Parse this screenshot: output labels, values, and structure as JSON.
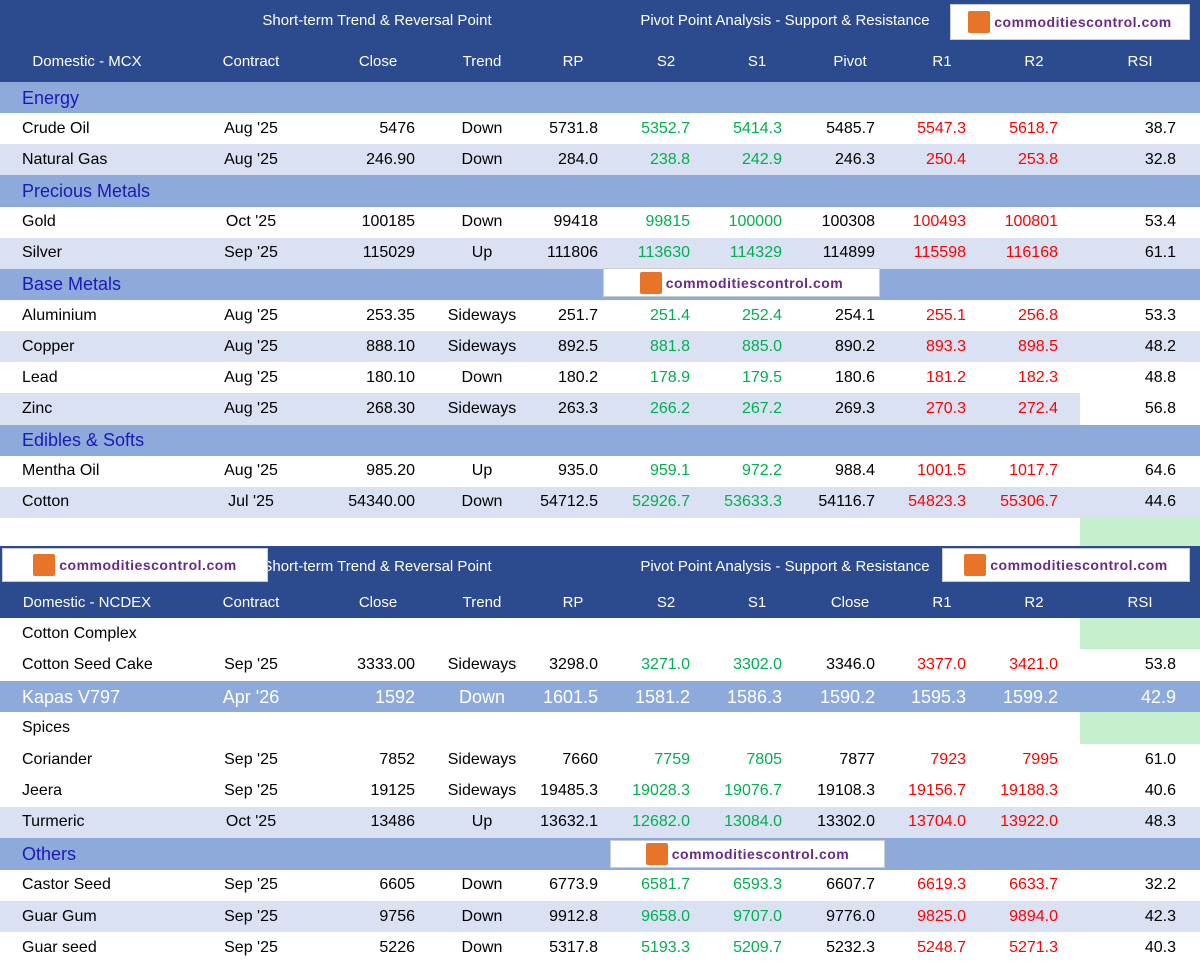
{
  "logo": "commoditiescontrol.com",
  "tables": [
    {
      "header": {
        "left_group": "Short-term Trend & Reversal Point",
        "right_group": "Pivot Point Analysis - Support & Resistance",
        "columns": [
          "Domestic - MCX",
          "Contract",
          "Close",
          "Trend",
          "RP",
          "S2",
          "S1",
          "Pivot",
          "R1",
          "R2",
          "RSI"
        ]
      },
      "sections": [
        {
          "title": "Energy",
          "rows": [
            [
              "Crude Oil",
              "Aug '25",
              "5476",
              "Down",
              "5731.8",
              "5352.7",
              "5414.3",
              "5485.7",
              "5547.3",
              "5618.7",
              "38.7"
            ],
            [
              "Natural Gas",
              "Aug '25",
              "246.90",
              "Down",
              "284.0",
              "238.8",
              "242.9",
              "246.3",
              "250.4",
              "253.8",
              "32.8"
            ]
          ]
        },
        {
          "title": "Precious Metals",
          "rows": [
            [
              "Gold",
              "Oct '25",
              "100185",
              "Down",
              "99418",
              "99815",
              "100000",
              "100308",
              "100493",
              "100801",
              "53.4"
            ],
            [
              "Silver",
              "Sep '25",
              "115029",
              "Up",
              "111806",
              "113630",
              "114329",
              "114899",
              "115598",
              "116168",
              "61.1"
            ]
          ]
        },
        {
          "title": "Base Metals",
          "rows": [
            [
              "Aluminium",
              "Aug '25",
              "253.35",
              "Sideways",
              "251.7",
              "251.4",
              "252.4",
              "254.1",
              "255.1",
              "256.8",
              "53.3"
            ],
            [
              "Copper",
              "Aug '25",
              "888.10",
              "Sideways",
              "892.5",
              "881.8",
              "885.0",
              "890.2",
              "893.3",
              "898.5",
              "48.2"
            ],
            [
              "Lead",
              "Aug '25",
              "180.10",
              "Down",
              "180.2",
              "178.9",
              "179.5",
              "180.6",
              "181.2",
              "182.3",
              "48.8"
            ],
            [
              "Zinc",
              "Aug '25",
              "268.30",
              "Sideways",
              "263.3",
              "266.2",
              "267.2",
              "269.3",
              "270.3",
              "272.4",
              "56.8"
            ]
          ]
        },
        {
          "title": "Edibles & Softs",
          "rows": [
            [
              "Mentha Oil",
              "Aug '25",
              "985.20",
              "Up",
              "935.0",
              "959.1",
              "972.2",
              "988.4",
              "1001.5",
              "1017.7",
              "64.6"
            ],
            [
              "Cotton",
              "Jul '25",
              "54340.00",
              "Down",
              "54712.5",
              "52926.7",
              "53633.3",
              "54116.7",
              "54823.3",
              "55306.7",
              "44.6"
            ]
          ]
        }
      ]
    },
    {
      "header": {
        "left_group": "Short-term Trend & Reversal Point",
        "right_group": "Pivot Point Analysis - Support & Resistance",
        "columns": [
          "Domestic - NCDEX",
          "Contract",
          "Close",
          "Trend",
          "RP",
          "S2",
          "S1",
          "Close",
          "R1",
          "R2",
          "RSI"
        ]
      },
      "sections": [
        {
          "title": "Cotton Complex",
          "rows": [
            [
              "Cotton Seed Cake",
              "Sep '25",
              "3333.00",
              "Sideways",
              "3298.0",
              "3271.0",
              "3302.0",
              "3346.0",
              "3377.0",
              "3421.0",
              "53.8"
            ],
            [
              "Kapas V797",
              "Apr '26",
              "1592",
              "Down",
              "1601.5",
              "1581.2",
              "1586.3",
              "1590.2",
              "1595.3",
              "1599.2",
              "42.9"
            ]
          ]
        },
        {
          "title": "Spices",
          "rows": [
            [
              "Coriander",
              "Sep '25",
              "7852",
              "Sideways",
              "7660",
              "7759",
              "7805",
              "7877",
              "7923",
              "7995",
              "61.0"
            ],
            [
              "Jeera",
              "Sep '25",
              "19125",
              "Sideways",
              "19485.3",
              "19028.3",
              "19076.7",
              "19108.3",
              "19156.7",
              "19188.3",
              "40.6"
            ],
            [
              "Turmeric",
              "Oct '25",
              "13486",
              "Up",
              "13632.1",
              "12682.0",
              "13084.0",
              "13302.0",
              "13704.0",
              "13922.0",
              "48.3"
            ]
          ]
        },
        {
          "title": "Others",
          "rows": [
            [
              "Castor Seed",
              "Sep '25",
              "6605",
              "Down",
              "6773.9",
              "6581.7",
              "6593.3",
              "6607.7",
              "6619.3",
              "6633.7",
              "32.2"
            ],
            [
              "Guar Gum",
              "Sep '25",
              "9756",
              "Down",
              "9912.8",
              "9658.0",
              "9707.0",
              "9776.0",
              "9825.0",
              "9894.0",
              "42.3"
            ],
            [
              "Guar seed",
              "Sep '25",
              "5226",
              "Down",
              "5317.8",
              "5193.3",
              "5209.7",
              "5232.3",
              "5248.7",
              "5271.3",
              "40.3"
            ]
          ]
        }
      ]
    }
  ]
}
